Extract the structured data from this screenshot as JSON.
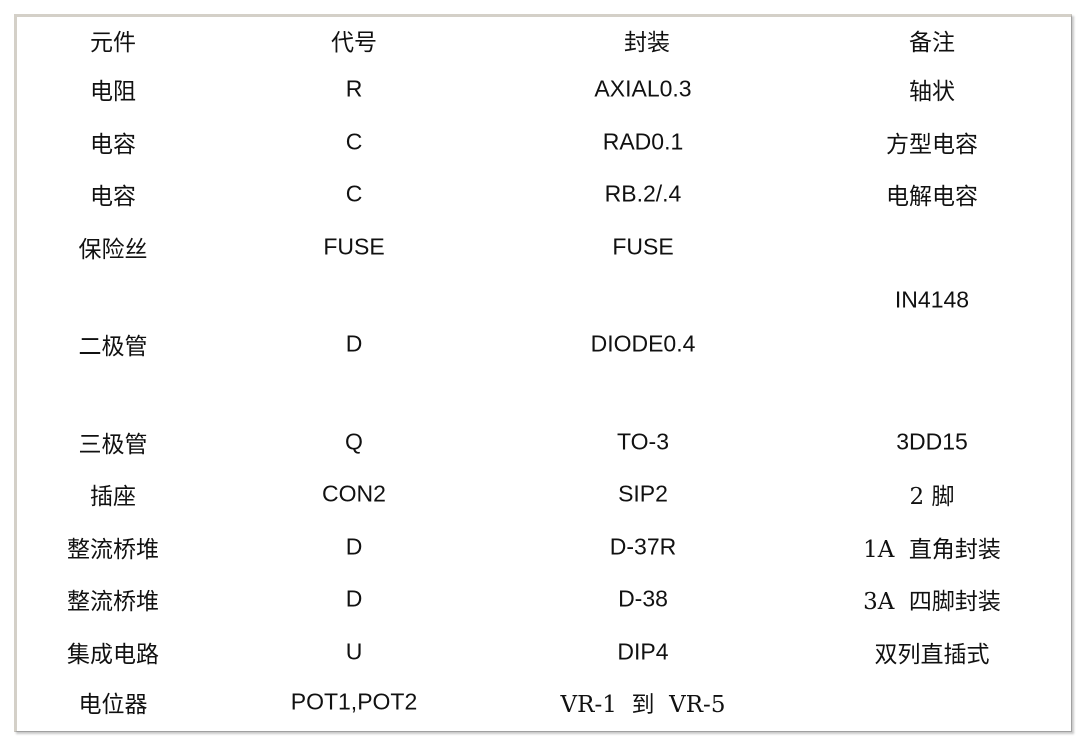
{
  "headers": [
    "元件",
    "代号",
    "封装",
    "备注"
  ],
  "rows": [
    [
      "电阻",
      "R",
      "AXIAL0.3",
      "轴状"
    ],
    [
      "电容",
      "C",
      "RAD0.1",
      "方型电容"
    ],
    [
      "电容",
      "C",
      "RB.2/.4",
      "电解电容"
    ],
    [
      "保险丝",
      "FUSE",
      "FUSE",
      ""
    ],
    [
      "二极管",
      "D",
      "DIODE0.4",
      "IN4148"
    ],
    [
      "三极管",
      "Q",
      "TO-3",
      "3DD15"
    ],
    [
      "插座",
      "CON2",
      "SIP2",
      "2 脚"
    ],
    [
      "整流桥堆",
      "D",
      "D-37R",
      "1A  直角封装"
    ],
    [
      "整流桥堆",
      "D",
      "D-38",
      "3A  四脚封装"
    ],
    [
      "集成电路",
      "U",
      "DIP4",
      "双列直插式"
    ],
    [
      "电位器",
      "POT1,POT2",
      "VR-1  到  VR-5",
      ""
    ]
  ]
}
